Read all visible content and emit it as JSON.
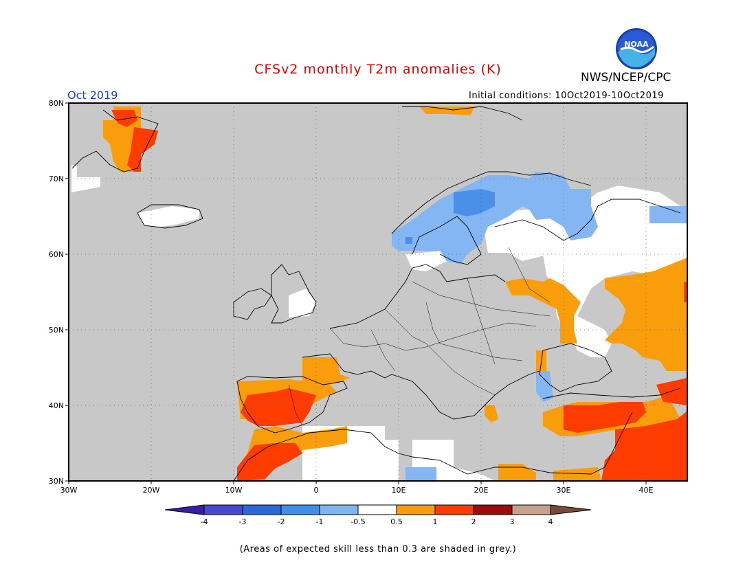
{
  "header": {
    "title": "CFSv2 monthly T2m anomalies (K)",
    "agency": "NWS/NCEP/CPC",
    "logo_text": "NOAA",
    "month": "Oct 2019",
    "initial_conditions": "Initial conditions: 10Oct2019-10Oct2019"
  },
  "map": {
    "lat_labels": [
      "80N",
      "70N",
      "60N",
      "50N",
      "40N",
      "30N"
    ],
    "lon_labels": [
      "30W",
      "20W",
      "10W",
      "0",
      "10E",
      "20E",
      "30E",
      "40E"
    ],
    "lon_range": [
      -30,
      45
    ],
    "lat_range": [
      30,
      80
    ],
    "background_color": "#c8c8c8"
  },
  "colorbar": {
    "labels": [
      "-4",
      "-3",
      "-2",
      "-1",
      "-0.5",
      "0.5",
      "1",
      "2",
      "3",
      "4"
    ],
    "colors": [
      "#3a1ca8",
      "#4848d0",
      "#2a6ad8",
      "#3f8ee8",
      "#7db6f2",
      "#ffffff",
      "#f99e0a",
      "#ff3c00",
      "#a00a0a",
      "#c8a090",
      "#7a4a38"
    ]
  },
  "footer": {
    "note": "(Areas of expected skill less than 0.3 are shaded in grey.)"
  }
}
